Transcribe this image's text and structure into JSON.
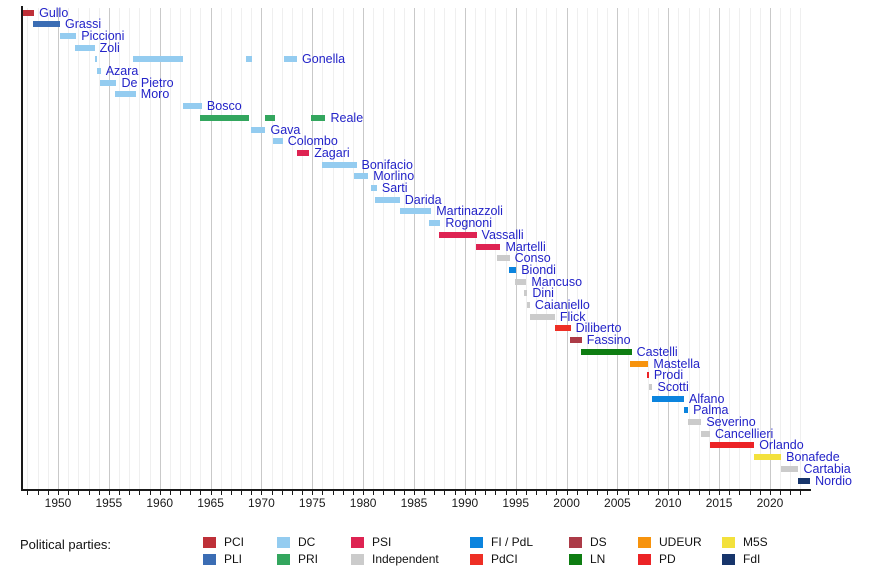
{
  "legend": {
    "title": "Political parties:",
    "rows": [
      [
        "PCI",
        "DC",
        "PSI",
        "FI / PdL",
        "DS",
        "UDEUR",
        "M5S"
      ],
      [
        "PLI",
        "PRI",
        "Independent",
        "PdCI",
        "LN",
        "PD",
        "FdI"
      ]
    ]
  },
  "chart_data": {
    "type": "timeline",
    "title": "",
    "x_axis": {
      "min_year": 1946.4,
      "max_year": 2023.95,
      "tick_interval_years": 1,
      "label_interval_years": 5,
      "tick_labels": [
        "1950",
        "1955",
        "1960",
        "1965",
        "1970",
        "1975",
        "1980",
        "1985",
        "1990",
        "1995",
        "2000",
        "2005",
        "2010",
        "2015",
        "2020"
      ],
      "grid": "on"
    },
    "parties": {
      "PCI": "#be3038",
      "PLI": "#3b6db4",
      "DC": "#94ccf0",
      "PRI": "#33a65e",
      "PSI": "#de2352",
      "Independent": "#cbcbcb",
      "FI / PdL": "#0b84de",
      "PdCI": "#ee2f25",
      "DS": "#ac3b47",
      "LN": "#0e7d12",
      "UDEUR": "#f7930d",
      "PD": "#ec2326",
      "M5S": "#f3e13c",
      "FdI": "#17356b"
    },
    "ministers": [
      {
        "name": "Gullo",
        "party": "PCI",
        "terms": [
          [
            1946.6,
            1947.65
          ]
        ]
      },
      {
        "name": "Grassi",
        "party": "PLI",
        "terms": [
          [
            1947.5,
            1950.2
          ]
        ]
      },
      {
        "name": "Piccioni",
        "party": "DC",
        "terms": [
          [
            1950.2,
            1951.8
          ]
        ]
      },
      {
        "name": "Zoli",
        "party": "DC",
        "terms": [
          [
            1951.7,
            1953.6
          ]
        ]
      },
      {
        "name": "Gonella",
        "party": "DC",
        "terms": [
          [
            1953.6,
            1953.85
          ],
          [
            1957.4,
            1962.3
          ],
          [
            1968.5,
            1969.1
          ],
          [
            1972.25,
            1973.5
          ]
        ]
      },
      {
        "name": "Azara",
        "party": "DC",
        "terms": [
          [
            1953.85,
            1954.2
          ]
        ]
      },
      {
        "name": "De Pietro",
        "party": "DC",
        "terms": [
          [
            1954.1,
            1955.75
          ]
        ]
      },
      {
        "name": "Moro",
        "party": "DC",
        "terms": [
          [
            1955.6,
            1957.65
          ]
        ]
      },
      {
        "name": "Bosco",
        "party": "DC",
        "terms": [
          [
            1962.3,
            1964.15
          ]
        ]
      },
      {
        "name": "Reale",
        "party": "PRI",
        "terms": [
          [
            1964.0,
            1968.8
          ],
          [
            1970.4,
            1971.3
          ],
          [
            1974.9,
            1976.3
          ]
        ]
      },
      {
        "name": "Gava",
        "party": "DC",
        "terms": [
          [
            1969.0,
            1970.4
          ]
        ]
      },
      {
        "name": "Colombo",
        "party": "DC",
        "terms": [
          [
            1971.1,
            1972.1
          ]
        ]
      },
      {
        "name": "Zagari",
        "party": "PSI",
        "terms": [
          [
            1973.5,
            1974.7
          ]
        ]
      },
      {
        "name": "Bonifacio",
        "party": "DC",
        "terms": [
          [
            1976.0,
            1979.35
          ]
        ]
      },
      {
        "name": "Morlino",
        "party": "DC",
        "terms": [
          [
            1979.1,
            1980.5
          ]
        ]
      },
      {
        "name": "Sarti",
        "party": "DC",
        "terms": [
          [
            1980.75,
            1981.35
          ]
        ]
      },
      {
        "name": "Darida",
        "party": "DC",
        "terms": [
          [
            1981.2,
            1983.6
          ]
        ]
      },
      {
        "name": "Martinazzoli",
        "party": "DC",
        "terms": [
          [
            1983.6,
            1986.7
          ]
        ]
      },
      {
        "name": "Rognoni",
        "party": "DC",
        "terms": [
          [
            1986.5,
            1987.6
          ]
        ]
      },
      {
        "name": "Vassalli",
        "party": "PSI",
        "terms": [
          [
            1987.5,
            1991.15
          ]
        ]
      },
      {
        "name": "Martelli",
        "party": "PSI",
        "terms": [
          [
            1991.05,
            1993.5
          ]
        ]
      },
      {
        "name": "Conso",
        "party": "Independent",
        "terms": [
          [
            1993.2,
            1994.4
          ]
        ]
      },
      {
        "name": "Biondi",
        "party": "FI / PdL",
        "terms": [
          [
            1994.35,
            1995.05
          ]
        ]
      },
      {
        "name": "Mancuso",
        "party": "Independent",
        "terms": [
          [
            1994.95,
            1996.05
          ]
        ]
      },
      {
        "name": "Dini",
        "party": "Independent",
        "terms": [
          [
            1995.85,
            1996.15
          ]
        ]
      },
      {
        "name": "Caianiello",
        "party": "Independent",
        "terms": [
          [
            1996.1,
            1996.4
          ]
        ]
      },
      {
        "name": "Flick",
        "party": "Independent",
        "terms": [
          [
            1996.4,
            1998.85
          ]
        ]
      },
      {
        "name": "Diliberto",
        "party": "PdCI",
        "terms": [
          [
            1998.85,
            2000.4
          ]
        ]
      },
      {
        "name": "Fassino",
        "party": "DS",
        "terms": [
          [
            2000.3,
            2001.5
          ]
        ]
      },
      {
        "name": "Castelli",
        "party": "LN",
        "terms": [
          [
            2001.45,
            2006.4
          ]
        ]
      },
      {
        "name": "Mastella",
        "party": "UDEUR",
        "terms": [
          [
            2006.2,
            2008.05
          ]
        ]
      },
      {
        "name": "Prodi",
        "party": "PD",
        "terms": [
          [
            2007.95,
            2008.1
          ]
        ]
      },
      {
        "name": "Scotti",
        "party": "Independent",
        "terms": [
          [
            2008.1,
            2008.45
          ]
        ]
      },
      {
        "name": "Alfano",
        "party": "FI / PdL",
        "terms": [
          [
            2008.4,
            2011.55
          ]
        ]
      },
      {
        "name": "Palma",
        "party": "FI / PdL",
        "terms": [
          [
            2011.55,
            2011.95
          ]
        ]
      },
      {
        "name": "Severino",
        "party": "Independent",
        "terms": [
          [
            2011.95,
            2013.25
          ]
        ]
      },
      {
        "name": "Cancellieri",
        "party": "Independent",
        "terms": [
          [
            2013.25,
            2014.1
          ]
        ]
      },
      {
        "name": "Orlando",
        "party": "PD",
        "terms": [
          [
            2014.1,
            2018.45
          ]
        ]
      },
      {
        "name": "Bonafede",
        "party": "M5S",
        "terms": [
          [
            2018.45,
            2021.1
          ]
        ]
      },
      {
        "name": "Cartabia",
        "party": "Independent",
        "terms": [
          [
            2021.1,
            2022.8
          ]
        ]
      },
      {
        "name": "Nordio",
        "party": "FdI",
        "terms": [
          [
            2022.8,
            2023.95
          ]
        ]
      }
    ]
  }
}
